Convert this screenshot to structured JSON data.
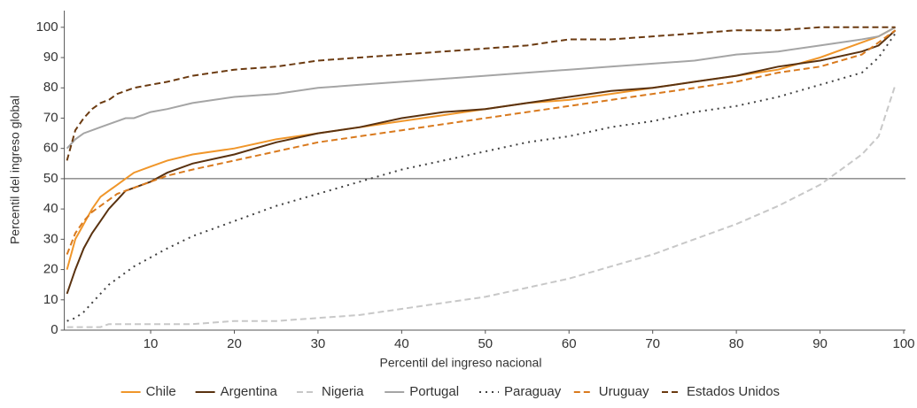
{
  "chart_data": {
    "type": "line",
    "x_label": "Percentil del ingreso nacional",
    "y_label": "Percentil del ingreso global",
    "x": [
      0,
      1,
      2,
      3,
      4,
      5,
      6,
      7,
      8,
      10,
      12,
      15,
      20,
      25,
      30,
      35,
      40,
      45,
      50,
      55,
      60,
      65,
      70,
      75,
      80,
      85,
      90,
      95,
      97,
      99
    ],
    "xlim": [
      0,
      100
    ],
    "xticks": [
      10,
      20,
      30,
      40,
      50,
      60,
      70,
      80,
      90,
      100
    ],
    "ylim": [
      0,
      105.5
    ],
    "yticks": [
      0,
      10,
      20,
      30,
      40,
      50,
      60,
      70,
      80,
      90,
      100
    ],
    "hline": 50,
    "series": [
      {
        "name": "Chile",
        "color": "#f0962a",
        "dash": "solid",
        "values": [
          20,
          30,
          35,
          40,
          44,
          46,
          48,
          50,
          52,
          54,
          56,
          58,
          60,
          63,
          65,
          67,
          69,
          71,
          73,
          75,
          76,
          78,
          80,
          82,
          84,
          86,
          90,
          95,
          97,
          100
        ]
      },
      {
        "name": "Argentina",
        "color": "#5a3210",
        "dash": "solid",
        "values": [
          12,
          20,
          27,
          32,
          36,
          40,
          43,
          46,
          47,
          49,
          52,
          55,
          58,
          62,
          65,
          67,
          70,
          72,
          73,
          75,
          77,
          79,
          80,
          82,
          84,
          87,
          89,
          92,
          94,
          99
        ]
      },
      {
        "name": "Nigeria",
        "color": "#c8c8c8",
        "dash": "dashed",
        "values": [
          1,
          1,
          1,
          1,
          1,
          2,
          2,
          2,
          2,
          2,
          2,
          2,
          3,
          3,
          4,
          5,
          7,
          9,
          11,
          14,
          17,
          21,
          25,
          30,
          35,
          41,
          48,
          58,
          64,
          81
        ]
      },
      {
        "name": "Portugal",
        "color": "#a5a5a5",
        "dash": "solid",
        "values": [
          60,
          63,
          65,
          66,
          67,
          68,
          69,
          70,
          70,
          72,
          73,
          75,
          77,
          78,
          80,
          81,
          82,
          83,
          84,
          85,
          86,
          87,
          88,
          89,
          91,
          92,
          94,
          96,
          97,
          100
        ]
      },
      {
        "name": "Paraguay",
        "color": "#404040",
        "dash": "dotted",
        "values": [
          3,
          4,
          6,
          9,
          12,
          15,
          17,
          19,
          21,
          24,
          27,
          31,
          36,
          41,
          45,
          49,
          53,
          56,
          59,
          62,
          64,
          67,
          69,
          72,
          74,
          77,
          81,
          85,
          90,
          98
        ]
      },
      {
        "name": "Uruguay",
        "color": "#d97a1e",
        "dash": "dashed",
        "values": [
          25,
          32,
          36,
          39,
          41,
          43,
          45,
          46,
          47,
          49,
          51,
          53,
          56,
          59,
          62,
          64,
          66,
          68,
          70,
          72,
          74,
          76,
          78,
          80,
          82,
          85,
          87,
          91,
          95,
          99
        ]
      },
      {
        "name": "Estados Unidos",
        "color": "#6b3a10",
        "dash": "dashed",
        "values": [
          56,
          66,
          70,
          73,
          75,
          76,
          78,
          79,
          80,
          81,
          82,
          84,
          86,
          87,
          89,
          90,
          91,
          92,
          93,
          94,
          96,
          96,
          97,
          98,
          99,
          99,
          100,
          100,
          100,
          100
        ]
      }
    ]
  }
}
